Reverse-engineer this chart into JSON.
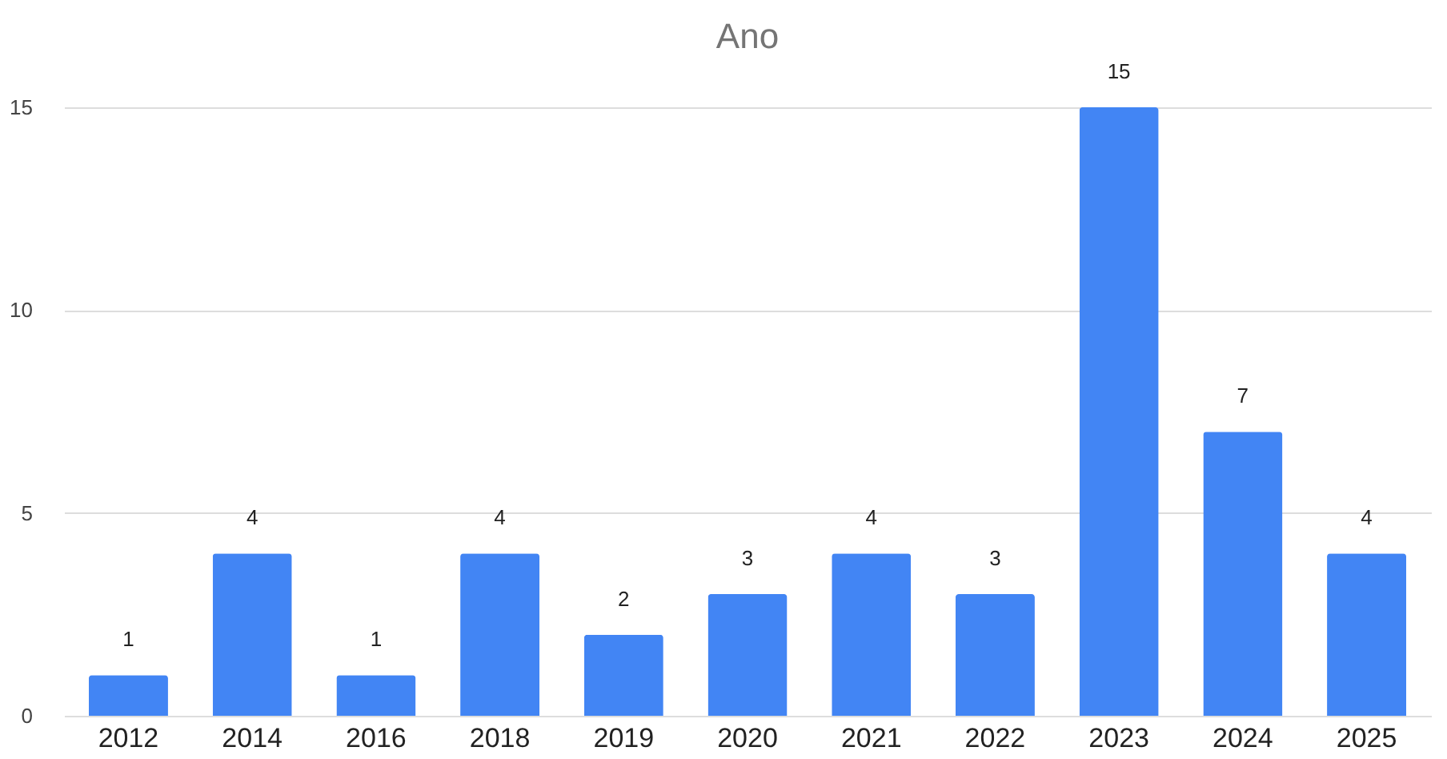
{
  "chart_data": {
    "type": "bar",
    "title": "Ano",
    "categories": [
      "2012",
      "2014",
      "2016",
      "2018",
      "2019",
      "2020",
      "2021",
      "2022",
      "2023",
      "2024",
      "2025"
    ],
    "values": [
      1,
      4,
      1,
      4,
      2,
      3,
      4,
      3,
      15,
      7,
      4
    ],
    "color": "#4285f4",
    "ylim": [
      0,
      15
    ],
    "yticks": [
      0,
      5,
      10,
      15
    ],
    "grid": "y",
    "data_labels": true
  }
}
